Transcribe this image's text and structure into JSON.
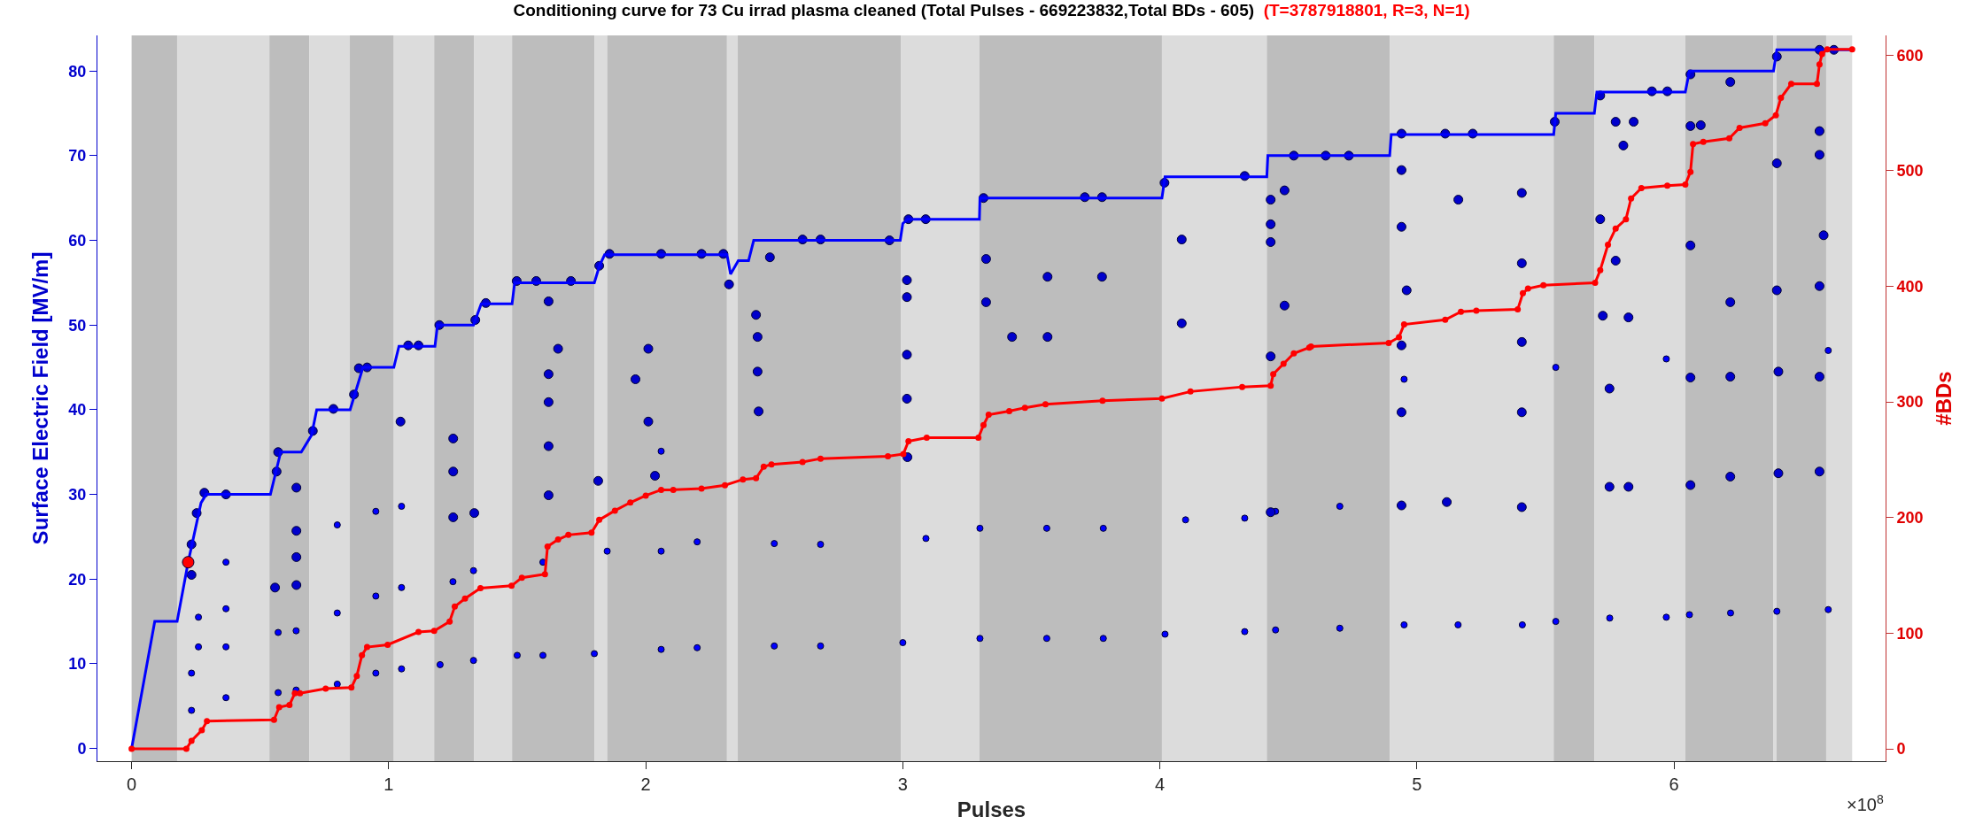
{
  "chart_data": {
    "type": "line",
    "title": "Conditioning curve for 73 Cu irrad plasma cleaned (Total Pulses - 669223832,Total BDs - 605)",
    "subtitle": "(T=3787918801, R=3, N=1)",
    "xlabel": "Pulses",
    "ylabel": "Surface Electric Field [MV/m]",
    "y2label": "#BDs",
    "annotations": [
      "×10$^{8}$"
    ],
    "xlim": [
      -0.133,
      6.823
    ],
    "xticks": [
      0,
      1,
      2,
      3,
      4,
      5,
      6
    ],
    "ylim": [
      -1.5,
      84.2
    ],
    "yticks": [
      0,
      10,
      20,
      30,
      40,
      50,
      60,
      70,
      80
    ],
    "y2lim": [
      -10.7,
      617
    ],
    "y2ticks": [
      0,
      100,
      200,
      300,
      400,
      500,
      600
    ],
    "grid": false,
    "bands": [
      {
        "axis": "x",
        "from": 0,
        "to": 0.177,
        "color": "#bdbdbd"
      },
      {
        "axis": "x",
        "from": 0.177,
        "to": 0.536,
        "color": "#dcdcdc"
      },
      {
        "axis": "x",
        "from": 0.536,
        "to": 0.691,
        "color": "#bdbdbd"
      },
      {
        "axis": "x",
        "from": 0.691,
        "to": 0.849,
        "color": "#dcdcdc"
      },
      {
        "axis": "x",
        "from": 0.849,
        "to": 1.02,
        "color": "#bdbdbd"
      },
      {
        "axis": "x",
        "from": 1.02,
        "to": 1.177,
        "color": "#dcdcdc"
      },
      {
        "axis": "x",
        "from": 1.177,
        "to": 1.333,
        "color": "#bdbdbd"
      },
      {
        "axis": "x",
        "from": 1.333,
        "to": 1.48,
        "color": "#dcdcdc"
      },
      {
        "axis": "x",
        "from": 1.48,
        "to": 1.8,
        "color": "#bdbdbd"
      },
      {
        "axis": "x",
        "from": 1.8,
        "to": 1.85,
        "color": "#dcdcdc"
      },
      {
        "axis": "x",
        "from": 1.85,
        "to": 2.316,
        "color": "#bdbdbd"
      },
      {
        "axis": "x",
        "from": 2.316,
        "to": 2.358,
        "color": "#dcdcdc"
      },
      {
        "axis": "x",
        "from": 2.358,
        "to": 2.992,
        "color": "#bdbdbd"
      },
      {
        "axis": "x",
        "from": 2.992,
        "to": 3.298,
        "color": "#dcdcdc"
      },
      {
        "axis": "x",
        "from": 3.298,
        "to": 4.008,
        "color": "#bdbdbd"
      },
      {
        "axis": "x",
        "from": 4.008,
        "to": 4.416,
        "color": "#dcdcdc"
      },
      {
        "axis": "x",
        "from": 4.416,
        "to": 4.894,
        "color": "#bdbdbd"
      },
      {
        "axis": "x",
        "from": 4.894,
        "to": 5.532,
        "color": "#dcdcdc"
      },
      {
        "axis": "x",
        "from": 5.532,
        "to": 5.69,
        "color": "#bdbdbd"
      },
      {
        "axis": "x",
        "from": 5.69,
        "to": 6.044,
        "color": "#dcdcdc"
      },
      {
        "axis": "x",
        "from": 6.044,
        "to": 6.387,
        "color": "#bdbdbd"
      },
      {
        "axis": "x",
        "from": 6.387,
        "to": 6.399,
        "color": "#dcdcdc"
      },
      {
        "axis": "x",
        "from": 6.399,
        "to": 6.592,
        "color": "#bdbdbd"
      },
      {
        "axis": "x",
        "from": 6.592,
        "to": 6.693,
        "color": "#dcdcdc"
      }
    ],
    "series": [
      {
        "type": "scatter",
        "color": "#0000ff",
        "marker": "circle",
        "x": [
          0.233,
          0.233,
          0.26,
          0.26,
          0.367,
          0.367,
          0.367,
          0.367,
          0.57,
          0.57,
          0.64,
          0.64,
          0.8,
          0.8,
          0.8,
          0.95,
          0.95,
          0.95,
          1.05,
          1.05,
          1.05,
          1.2,
          1.25,
          1.33,
          1.33,
          1.5,
          1.6,
          1.6,
          1.8,
          1.85,
          2.06,
          2.06,
          2.06,
          2.2,
          2.2,
          2.5,
          2.5,
          2.68,
          2.68,
          3.0,
          3.09,
          3.3,
          3.3,
          3.56,
          3.56,
          3.78,
          3.78,
          4.02,
          4.1,
          4.33,
          4.33,
          4.45,
          4.45,
          4.7,
          4.7,
          4.95,
          5.16,
          5.41,
          5.54,
          5.75,
          5.97,
          6.06,
          6.22,
          6.4,
          6.6,
          4.95,
          5.54,
          5.97,
          6.6
        ],
        "values": [
          4.5,
          8.9,
          12,
          15.5,
          6,
          12,
          16.5,
          22,
          6.6,
          13.7,
          6.9,
          13.9,
          7.6,
          16,
          26.4,
          8.9,
          18,
          28,
          9.4,
          19,
          28.6,
          9.9,
          19.7,
          10.4,
          21,
          11,
          22,
          11,
          11.2,
          23.3,
          11.7,
          23.3,
          35.1,
          11.9,
          24.4,
          12.1,
          24.2,
          12.1,
          24.1,
          12.5,
          24.8,
          13,
          26,
          13,
          26,
          13,
          26,
          13.5,
          27,
          13.8,
          27.2,
          14,
          28,
          14.2,
          28.6,
          14.6,
          14.6,
          14.6,
          15,
          15.4,
          15.5,
          15.8,
          16,
          16.2,
          16.4,
          43.6,
          45,
          46,
          47
        ]
      },
      {
        "type": "scatter",
        "color": "#0000cc",
        "marker": "circle",
        "x": [
          0.233,
          0.233,
          0.253,
          0.283,
          0.367,
          0.558,
          0.564,
          0.57,
          0.641,
          0.641,
          0.641,
          0.641,
          0.705,
          0.785,
          0.865,
          0.884,
          0.916,
          1.046,
          1.076,
          1.116,
          1.197,
          1.251,
          1.251,
          1.251,
          1.333,
          1.337,
          1.378,
          1.498,
          1.574,
          1.622,
          1.622,
          1.622,
          1.622,
          1.622,
          1.659,
          1.709,
          1.815,
          1.819,
          1.859,
          1.96,
          2.01,
          2.01,
          2.036,
          2.06,
          2.217,
          2.302,
          2.324,
          2.429,
          2.435,
          2.435,
          2.439,
          2.483,
          2.61,
          2.68,
          2.948,
          3.016,
          3.016,
          3.016,
          3.016,
          3.018,
          3.022,
          3.089,
          3.314,
          3.324,
          3.324,
          3.425,
          3.563,
          3.563,
          3.708,
          3.775,
          3.775,
          4.018,
          4.085,
          4.085,
          4.33,
          4.431,
          4.431,
          4.431,
          4.431,
          4.431,
          4.485,
          4.485,
          4.521,
          4.645,
          4.735,
          4.94,
          4.94,
          4.94,
          4.96,
          4.94,
          4.94,
          4.94,
          5.116,
          5.161,
          5.11,
          5.217,
          5.408,
          5.408,
          5.408,
          5.408,
          5.408,
          5.536,
          5.713,
          5.713,
          5.723,
          5.749,
          5.749,
          5.773,
          5.773,
          5.803,
          5.823,
          5.823,
          5.843,
          5.914,
          5.974,
          6.064,
          6.064,
          6.064,
          6.064,
          6.064,
          6.104,
          6.219,
          6.219,
          6.219,
          6.219,
          6.4,
          6.4,
          6.4,
          6.406,
          6.406,
          6.566,
          6.566,
          6.566,
          6.582,
          6.566,
          6.566,
          6.566,
          6.622
        ],
        "values": [
          20.5,
          24.1,
          27.8,
          30.2,
          30.0,
          19.0,
          32.7,
          35.0,
          30.8,
          25.7,
          22.6,
          19.3,
          37.5,
          40.1,
          41.8,
          44.9,
          45.0,
          38.6,
          47.6,
          47.6,
          50.0,
          36.6,
          32.7,
          27.3,
          27.8,
          50.6,
          52.6,
          55.2,
          55.2,
          52.8,
          44.2,
          40.9,
          35.7,
          29.9,
          47.2,
          55.2,
          31.6,
          57.0,
          58.4,
          43.6,
          47.2,
          38.6,
          32.2,
          58.4,
          58.4,
          58.4,
          54.8,
          51.2,
          48.6,
          44.5,
          39.8,
          58.0,
          60.1,
          60.1,
          60.0,
          55.3,
          53.3,
          46.5,
          41.3,
          34.4,
          62.5,
          62.5,
          65.0,
          57.8,
          52.7,
          48.6,
          55.7,
          48.6,
          65.1,
          55.7,
          65.1,
          66.8,
          60.1,
          50.2,
          67.6,
          64.8,
          61.9,
          59.8,
          46.3,
          27.9,
          65.9,
          52.3,
          70.0,
          70.0,
          70.0,
          72.6,
          68.3,
          61.6,
          54.1,
          47.6,
          39.7,
          28.7,
          29.1,
          64.8,
          72.6,
          72.6,
          65.6,
          57.3,
          48.0,
          39.7,
          28.5,
          74.0,
          77.1,
          62.5,
          51.1,
          42.5,
          30.9,
          74.0,
          57.6,
          71.2,
          50.9,
          30.9,
          74.0,
          77.6,
          77.6,
          79.6,
          73.5,
          59.4,
          43.8,
          31.1,
          73.6,
          78.7,
          52.7,
          43.9,
          32.1,
          81.7,
          69.1,
          54.1,
          44.5,
          32.5,
          82.5,
          72.9,
          70.1,
          60.6,
          54.6,
          43.9,
          32.7,
          82.5
        ]
      },
      {
        "color": "#0000ff",
        "marker": "none",
        "x": [
          0,
          0.09,
          0.177,
          0.22,
          0.27,
          0.29,
          0.54,
          0.58,
          0.66,
          0.7,
          0.72,
          0.85,
          0.88,
          0.9,
          1.02,
          1.04,
          1.18,
          1.19,
          1.33,
          1.36,
          1.48,
          1.49,
          1.8,
          1.82,
          1.84,
          2.316,
          2.33,
          2.36,
          2.4,
          2.42,
          2.99,
          3.0,
          3.02,
          3.298,
          3.3,
          4.008,
          4.02,
          4.416,
          4.42,
          4.894,
          4.9,
          5.532,
          5.54,
          5.69,
          5.7,
          6.044,
          6.06,
          6.387,
          6.4,
          6.693
        ],
        "values": [
          0,
          15,
          15,
          22,
          29,
          30,
          30,
          35,
          35,
          37,
          40,
          40,
          43,
          45,
          45,
          47.5,
          47.5,
          50,
          50,
          52.5,
          52.5,
          55,
          55,
          57,
          58.3,
          58.3,
          56,
          57.6,
          57.6,
          60,
          60,
          62,
          62.5,
          62.5,
          65,
          65,
          67.5,
          67.5,
          70,
          70,
          72.5,
          72.5,
          75,
          75,
          77.5,
          77.5,
          80,
          80,
          82.5,
          82.5
        ]
      },
      {
        "color": "#ff0000",
        "marker": "circle",
        "axis": "y2",
        "x": [
          0,
          0.213,
          0.233,
          0.273,
          0.293,
          0.554,
          0.574,
          0.614,
          0.635,
          0.655,
          0.755,
          0.855,
          0.876,
          0.896,
          0.916,
          0.996,
          1.116,
          1.177,
          1.237,
          1.257,
          1.297,
          1.357,
          1.478,
          1.518,
          1.608,
          1.618,
          1.659,
          1.699,
          1.789,
          1.819,
          1.88,
          1.94,
          2.0,
          2.06,
          2.107,
          2.217,
          2.308,
          2.378,
          2.429,
          2.459,
          2.489,
          2.61,
          2.68,
          2.942,
          3.002,
          3.022,
          3.093,
          3.294,
          3.314,
          3.334,
          3.414,
          3.475,
          3.555,
          3.777,
          4.008,
          4.119,
          4.32,
          4.431,
          4.441,
          4.481,
          4.521,
          4.581,
          4.588,
          4.89,
          4.93,
          4.95,
          5.11,
          5.171,
          5.231,
          5.392,
          5.412,
          5.432,
          5.492,
          5.693,
          5.713,
          5.743,
          5.773,
          5.813,
          5.833,
          5.873,
          5.974,
          6.044,
          6.064,
          6.074,
          6.114,
          6.215,
          6.255,
          6.355,
          6.396,
          6.416,
          6.456,
          6.556,
          6.566,
          6.576,
          6.596,
          6.693
        ],
        "values": [
          0,
          0,
          7,
          16,
          24,
          25,
          36,
          38,
          48,
          48,
          52,
          53,
          63,
          81,
          88,
          90,
          101,
          102,
          110,
          123,
          130,
          139,
          141,
          148,
          151,
          175,
          181,
          185,
          187,
          198,
          206,
          213,
          219,
          224,
          224,
          225,
          228,
          233,
          234,
          244,
          246,
          248,
          251,
          253,
          255,
          266,
          269,
          269,
          280,
          289,
          292,
          295,
          298,
          301,
          303,
          309,
          313,
          314,
          324,
          333,
          342,
          347,
          348,
          351,
          356,
          367,
          371,
          378,
          379,
          380,
          394,
          398,
          401,
          403,
          414,
          436,
          450,
          458,
          476,
          485,
          487,
          488,
          499,
          523,
          525,
          528,
          537,
          541,
          548,
          563,
          575,
          575,
          592,
          601,
          605,
          605
        ]
      },
      {
        "type": "scatter",
        "color": "#ff0000",
        "marker": "circle",
        "x": [
          0.22
        ],
        "values": [
          22
        ]
      }
    ]
  }
}
